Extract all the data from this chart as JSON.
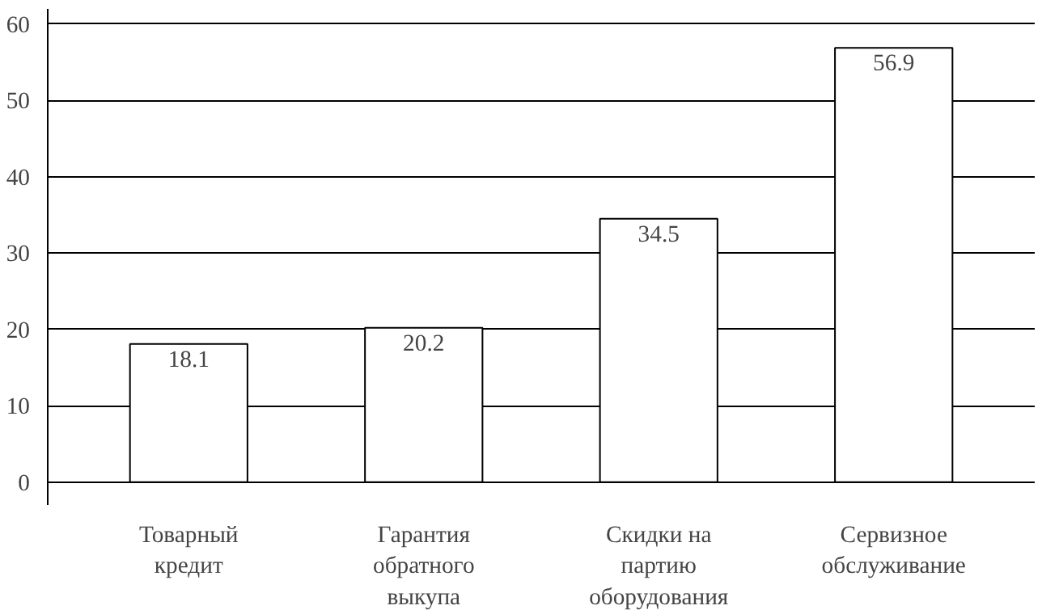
{
  "chart_data": {
    "type": "bar",
    "categories": [
      "Товарный кредит",
      "Гарантия обратного выкупа",
      "Скидки на партию оборудования",
      "Сервизное обслуживание"
    ],
    "values": [
      18.1,
      20.2,
      34.5,
      56.9
    ],
    "color": "#ffffff",
    "ylim": [
      -3,
      62
    ],
    "yticks": [
      0,
      10,
      20,
      30,
      40,
      50,
      60
    ],
    "grid": "y",
    "data_labels": true
  }
}
